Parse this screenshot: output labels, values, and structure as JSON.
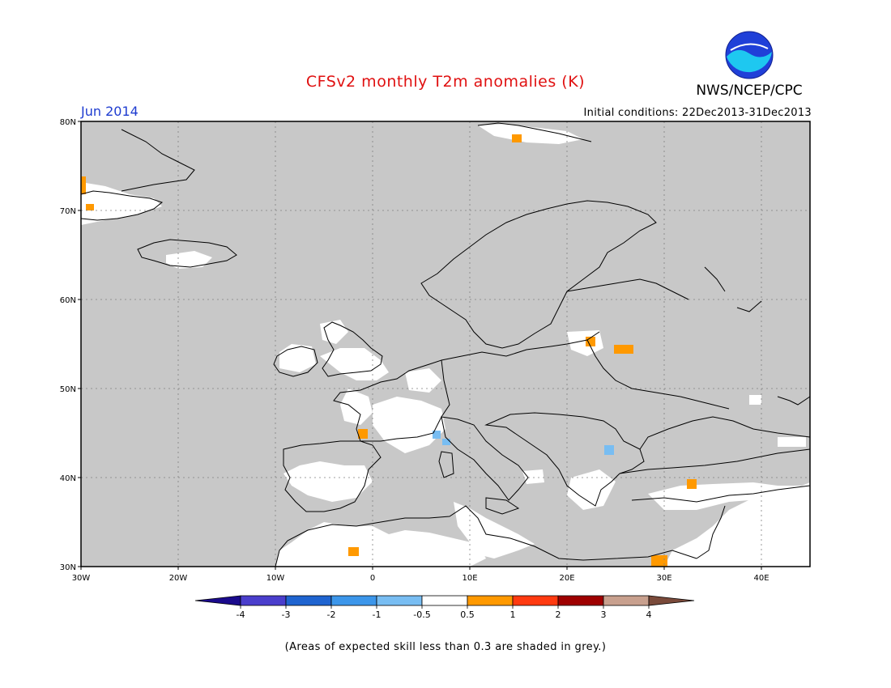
{
  "header": {
    "title": "CFSv2 monthly T2m anomalies (K)",
    "org": "NWS/NCEP/CPC",
    "period": "Jun 2014",
    "initial_conditions": "Initial conditions: 22Dec2013-31Dec2013"
  },
  "map": {
    "lon_range": [
      -30,
      45
    ],
    "lat_range": [
      30,
      80
    ],
    "lon_ticks": [
      {
        "value": -30,
        "label": "30W"
      },
      {
        "value": -20,
        "label": "20W"
      },
      {
        "value": -10,
        "label": "10W"
      },
      {
        "value": 0,
        "label": "0"
      },
      {
        "value": 10,
        "label": "10E"
      },
      {
        "value": 20,
        "label": "20E"
      },
      {
        "value": 30,
        "label": "30E"
      },
      {
        "value": 40,
        "label": "40E"
      }
    ],
    "lat_ticks": [
      {
        "value": 30,
        "label": "30N"
      },
      {
        "value": 40,
        "label": "40N"
      },
      {
        "value": 50,
        "label": "50N"
      },
      {
        "value": 60,
        "label": "60N"
      },
      {
        "value": 70,
        "label": "70N"
      },
      {
        "value": 80,
        "label": "80N"
      }
    ],
    "colors": {
      "grey_skill": "#c8c8c8",
      "neutral": "#ffffff",
      "coast": "#000000"
    }
  },
  "colorbar": {
    "labels": [
      "-4",
      "-3",
      "-2",
      "-1",
      "-0.5",
      "0.5",
      "1",
      "2",
      "3",
      "4"
    ],
    "colors": [
      "#1a0a8c",
      "#4a3ecc",
      "#1f64d0",
      "#3c96ea",
      "#78bdf2",
      "#ffffff",
      "#ff9900",
      "#ff3a10",
      "#9e0000",
      "#c8a08e",
      "#7a4a3a"
    ]
  },
  "footer": {
    "skill_note": "(Areas of expected skill less than 0.3 are shaded in grey.)"
  }
}
